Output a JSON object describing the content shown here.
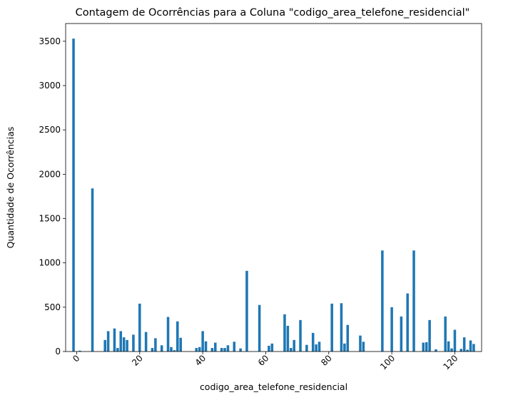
{
  "chart_data": {
    "type": "bar",
    "title": "Contagem de Ocorrências para a Coluna \"codigo_area_telefone_residencial\"",
    "xlabel": "codigo_area_telefone_residencial",
    "ylabel": "Quantidade de Ocorrências",
    "xlim": [
      -3.5,
      128.5
    ],
    "ylim": [
      0,
      3700
    ],
    "xticks": [
      0,
      20,
      40,
      60,
      80,
      100,
      120
    ],
    "xtick_labels": [
      "0",
      "20",
      "40",
      "60",
      "80",
      "100",
      "120"
    ],
    "xtick_rotation": 45,
    "yticks": [
      0,
      500,
      1000,
      1500,
      2000,
      2500,
      3000,
      3500
    ],
    "ytick_labels": [
      "0",
      "500",
      "1000",
      "1500",
      "2000",
      "2500",
      "3000",
      "3500"
    ],
    "grid": false,
    "bar_color": "#1f77b4",
    "x": [
      -1,
      1,
      5,
      9,
      10,
      12,
      13,
      14,
      15,
      16,
      18,
      20,
      22,
      24,
      25,
      27,
      29,
      30,
      31,
      32,
      33,
      38,
      39,
      40,
      41,
      43,
      44,
      46,
      47,
      48,
      50,
      52,
      54,
      58,
      61,
      62,
      66,
      67,
      68,
      69,
      71,
      73,
      75,
      76,
      77,
      81,
      84,
      85,
      86,
      90,
      91,
      97,
      100,
      103,
      105,
      107,
      110,
      111,
      112,
      114,
      117,
      118,
      119,
      120,
      122,
      123,
      124,
      125,
      126
    ],
    "values": [
      3530,
      10,
      1840,
      130,
      230,
      260,
      40,
      230,
      160,
      130,
      190,
      540,
      220,
      40,
      150,
      70,
      390,
      50,
      15,
      340,
      155,
      40,
      50,
      230,
      115,
      40,
      100,
      40,
      40,
      70,
      110,
      35,
      910,
      525,
      65,
      90,
      420,
      290,
      40,
      130,
      355,
      75,
      210,
      80,
      110,
      540,
      545,
      90,
      300,
      180,
      110,
      1140,
      500,
      395,
      655,
      1140,
      100,
      105,
      355,
      25,
      395,
      115,
      35,
      245,
      30,
      160,
      20,
      125,
      85
    ]
  }
}
